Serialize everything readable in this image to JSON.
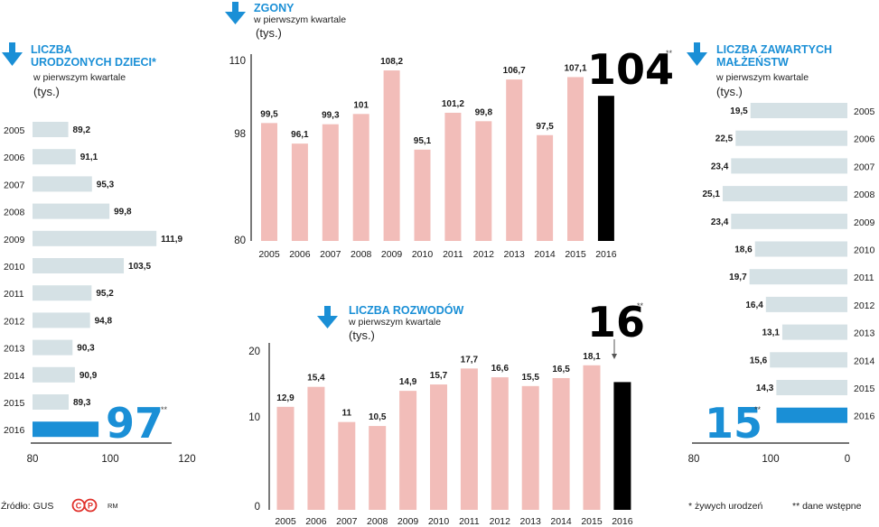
{
  "colors": {
    "blue": "#1a8fd6",
    "light_bar": "#d5e1e5",
    "pink_bar": "#f2bdb9",
    "black_bar": "#000000",
    "axis": "#222222"
  },
  "chart_data": [
    {
      "id": "births",
      "type": "bar",
      "orientation": "horizontal",
      "title_lines": [
        "LICZBA",
        "URODZONYCH DZIECI*"
      ],
      "subtitle": "w pierwszym kwartale",
      "unit": "(tys.)",
      "categories": [
        "2005",
        "2006",
        "2007",
        "2008",
        "2009",
        "2010",
        "2011",
        "2012",
        "2013",
        "2014",
        "2015",
        "2016"
      ],
      "values": [
        89.2,
        91.1,
        95.3,
        99.8,
        111.9,
        103.5,
        95.2,
        94.8,
        90.3,
        90.9,
        89.3,
        97
      ],
      "labels": [
        "89,2",
        "91,1",
        "95,3",
        "99,8",
        "111,9",
        "103,5",
        "95,2",
        "94,8",
        "90,3",
        "90,9",
        "89,3",
        ""
      ],
      "highlight": {
        "category": "2016",
        "label": "97",
        "mark": "**"
      },
      "xlim": [
        80,
        120
      ],
      "ticks": [
        "80",
        "100",
        "120"
      ]
    },
    {
      "id": "deaths",
      "type": "bar",
      "orientation": "vertical",
      "title_lines": [
        "ZGONY"
      ],
      "subtitle": "w pierwszym kwartale",
      "unit": "(tys.)",
      "categories": [
        "2005",
        "2006",
        "2007",
        "2008",
        "2009",
        "2010",
        "2011",
        "2012",
        "2013",
        "2014",
        "2015",
        "2016"
      ],
      "values": [
        99.5,
        96.1,
        99.3,
        101,
        108.2,
        95.1,
        101.2,
        99.8,
        106.7,
        97.5,
        107.1,
        104
      ],
      "labels": [
        "99,5",
        "96,1",
        "99,3",
        "101",
        "108,2",
        "95,1",
        "101,2",
        "99,8",
        "106,7",
        "97,5",
        "107,1",
        ""
      ],
      "highlight": {
        "category": "2016",
        "label": "104",
        "mark": "**"
      },
      "ylim": [
        80,
        110
      ],
      "ticks": [
        "110",
        "98",
        "80"
      ]
    },
    {
      "id": "divorces",
      "type": "bar",
      "orientation": "vertical",
      "title_lines": [
        "LICZBA ROZWODÓW"
      ],
      "subtitle": "w pierwszym kwartale",
      "unit": "(tys.)",
      "categories": [
        "2005",
        "2006",
        "2007",
        "2008",
        "2009",
        "2010",
        "2011",
        "2012",
        "2013",
        "2014",
        "2015",
        "2016"
      ],
      "values": [
        12.9,
        15.4,
        11,
        10.5,
        14.9,
        15.7,
        17.7,
        16.6,
        15.5,
        16.5,
        18.1,
        16
      ],
      "labels": [
        "12,9",
        "15,4",
        "11",
        "10,5",
        "14,9",
        "15,7",
        "17,7",
        "16,6",
        "15,5",
        "16,5",
        "18,1",
        ""
      ],
      "highlight": {
        "category": "2016",
        "label": "16",
        "mark": "**"
      },
      "ylim": [
        0,
        20
      ],
      "ticks": [
        "20",
        "10",
        "0"
      ]
    },
    {
      "id": "marriages",
      "type": "bar",
      "orientation": "horizontal-reversed",
      "title_lines": [
        "LICZBA ZAWARTYCH",
        "MAŁŻEŃSTW"
      ],
      "subtitle": "w pierwszym kwartale",
      "unit": "(tys.)",
      "categories": [
        "2005",
        "2006",
        "2007",
        "2008",
        "2009",
        "2010",
        "2011",
        "2012",
        "2013",
        "2014",
        "2015",
        "2016"
      ],
      "values": [
        19.5,
        22.5,
        23.4,
        25.1,
        23.4,
        18.6,
        19.7,
        16.4,
        13.1,
        15.6,
        14.3,
        15
      ],
      "labels": [
        "19,5",
        "22,5",
        "23,4",
        "25,1",
        "23,4",
        "18,6",
        "19,7",
        "16,4",
        "13,1",
        "15,6",
        "14,3",
        ""
      ],
      "highlight": {
        "category": "2016",
        "label": "15",
        "mark": "**"
      },
      "xlim": [
        0,
        80
      ],
      "ticks": [
        "80",
        "100",
        "0"
      ]
    }
  ],
  "footer": {
    "source": "Źródło: GUS",
    "logo_text": "©P",
    "author": "RM",
    "note1": "* żywych urodzeń",
    "note2": "** dane wstępne"
  }
}
